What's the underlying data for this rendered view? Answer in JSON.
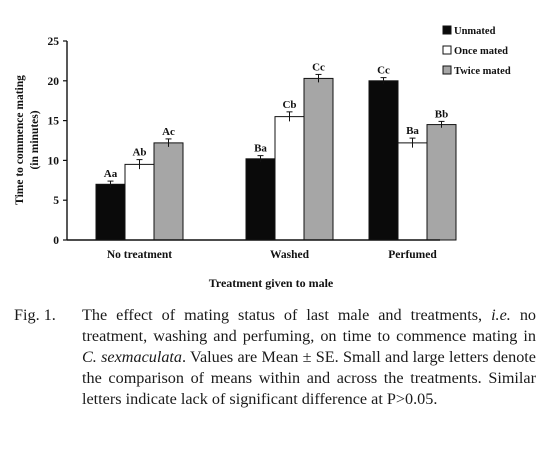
{
  "chart_data": {
    "type": "bar",
    "ylabel": "Time to commence mating",
    "ylabel_unit": "(in minutes)",
    "xlabel": "Treatment given to male",
    "ylim": [
      0,
      25
    ],
    "yticks": [
      "0",
      "5",
      "10",
      "15",
      "20",
      "25"
    ],
    "categories": [
      "No treatment",
      "Washed",
      "Perfumed"
    ],
    "series": [
      {
        "name": "Unmated",
        "color": "#0a0a0a",
        "values": [
          7.0,
          10.2,
          20.0
        ],
        "errors": [
          0.4,
          0.4,
          0.4
        ],
        "labels": [
          "Aa",
          "Ba",
          "Cc"
        ]
      },
      {
        "name": "Once mated",
        "color": "#ffffff",
        "values": [
          9.5,
          15.5,
          12.2
        ],
        "errors": [
          0.6,
          0.6,
          0.6
        ],
        "labels": [
          "Ab",
          "Cb",
          "Ba"
        ]
      },
      {
        "name": "Twice mated",
        "color": "#a6a6a6",
        "values": [
          12.2,
          20.3,
          14.5
        ],
        "errors": [
          0.5,
          0.5,
          0.4
        ],
        "labels": [
          "Ac",
          "Cc",
          "Bb"
        ]
      }
    ],
    "legend_position": "top-right"
  },
  "caption": {
    "fig_label": "Fig. 1.",
    "part1": "The effect of mating status of last male and treatments,",
    "part2_italic": "i.e.",
    "part3": "no treatment, washing and perfuming, on time to commence mating in",
    "part4_italic": "C. sexmaculata",
    "part5": ". Values are Mean ± SE. Small and large letters denote the comparison of means within and across the treatments. Similar letters indicate lack of significant difference at P>0.05."
  }
}
